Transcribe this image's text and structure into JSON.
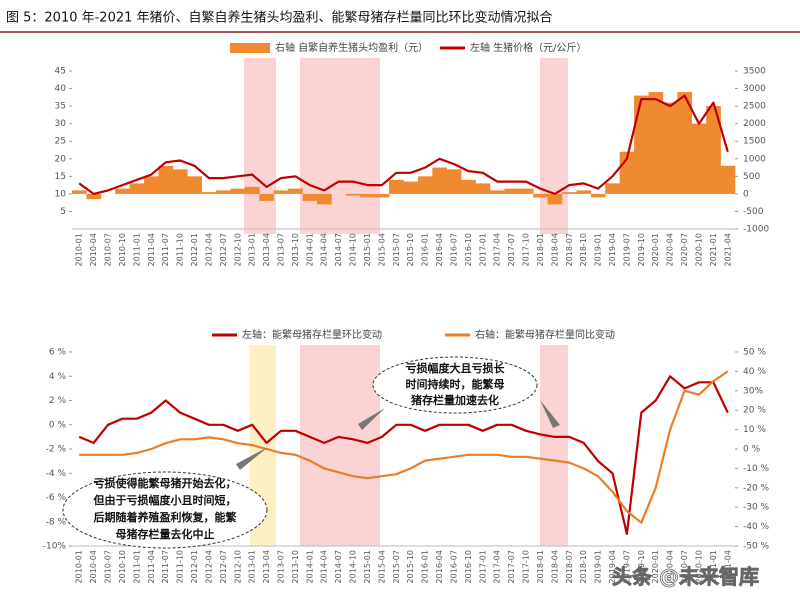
{
  "chart_data": [
    {
      "type": "combo",
      "title": "图 5：2010 年-2021 年猪价、自繁自养生猪头均盈利、能繁母猪存栏量同比环比变动情况拟合",
      "categories": [
        "2010-01",
        "2010-04",
        "2010-07",
        "2010-10",
        "2011-01",
        "2011-04",
        "2011-07",
        "2011-10",
        "2012-01",
        "2012-04",
        "2012-07",
        "2012-10",
        "2013-01",
        "2013-04",
        "2013-07",
        "2013-10",
        "2014-01",
        "2014-04",
        "2014-07",
        "2014-10",
        "2015-01",
        "2015-04",
        "2015-07",
        "2015-10",
        "2016-01",
        "2016-04",
        "2016-07",
        "2016-10",
        "2017-01",
        "2017-04",
        "2017-07",
        "2017-10",
        "2018-01",
        "2018-04",
        "2018-07",
        "2018-10",
        "2019-01",
        "2019-04",
        "2019-07",
        "2019-10",
        "2020-01",
        "2020-04",
        "2020-07",
        "2020-10",
        "2021-01",
        "2021-04"
      ],
      "series": [
        {
          "name": "右轴   自繁自养生猪头均盈利（元）",
          "kind": "bar",
          "axis": "y2",
          "color": "#f08a30",
          "values": [
            100,
            -150,
            0,
            150,
            300,
            500,
            800,
            700,
            500,
            50,
            100,
            150,
            200,
            -200,
            100,
            150,
            -200,
            -300,
            0,
            -50,
            -100,
            -100,
            400,
            350,
            500,
            750,
            700,
            400,
            300,
            100,
            150,
            150,
            -100,
            -300,
            50,
            100,
            -100,
            300,
            1200,
            2800,
            2900,
            2600,
            2900,
            2000,
            2500,
            800
          ]
        },
        {
          "name": "左轴   生猪价格（元/公斤）",
          "kind": "line",
          "axis": "y",
          "color": "#c00000",
          "values": [
            13,
            10,
            11,
            12.5,
            14,
            15.5,
            19,
            19.5,
            18,
            14.5,
            14.5,
            15,
            15.5,
            12,
            14.5,
            15,
            12.5,
            11,
            13.5,
            13.5,
            12.5,
            12.5,
            16,
            16,
            17.5,
            20,
            18.5,
            16.5,
            16,
            13.5,
            13.5,
            13.5,
            11.5,
            10,
            12.5,
            13,
            11.5,
            15,
            20,
            37,
            37,
            35,
            38,
            30,
            36,
            22
          ]
        }
      ],
      "ylim": [
        0,
        45
      ],
      "yticks": [
        5,
        10,
        15,
        20,
        25,
        30,
        35,
        40,
        45
      ],
      "y2lim": [
        -1000,
        3500
      ],
      "y2ticks": [
        -1000,
        -500,
        0,
        500,
        1000,
        1500,
        2000,
        2500,
        3000,
        3500
      ]
    },
    {
      "type": "combo",
      "categories": [
        "2010-01",
        "2010-04",
        "2010-07",
        "2010-10",
        "2011-01",
        "2011-04",
        "2011-07",
        "2011-10",
        "2012-01",
        "2012-04",
        "2012-07",
        "2012-10",
        "2013-01",
        "2013-04",
        "2013-07",
        "2013-10",
        "2014-01",
        "2014-04",
        "2014-07",
        "2014-10",
        "2015-01",
        "2015-04",
        "2015-07",
        "2015-10",
        "2016-01",
        "2016-04",
        "2016-07",
        "2016-10",
        "2017-01",
        "2017-04",
        "2017-07",
        "2017-10",
        "2018-01",
        "2018-04",
        "2018-07",
        "2018-10",
        "2019-01",
        "2019-04",
        "2019-07",
        "2019-10",
        "2020-01",
        "2020-04",
        "2020-07",
        "2020-10",
        "2021-01",
        "2021-04"
      ],
      "series": [
        {
          "name": "左轴：能繁母猪存栏量环比变动",
          "kind": "line",
          "axis": "y",
          "color": "#c00000",
          "values": [
            -1,
            -1.5,
            0,
            0.5,
            0.5,
            1,
            2,
            1,
            0.5,
            0,
            0,
            -0.5,
            0,
            -1.5,
            -0.5,
            -0.5,
            -1,
            -1.5,
            -1,
            -1.2,
            -1.5,
            -1,
            0,
            0,
            -0.5,
            0,
            0,
            0,
            -0.5,
            0,
            0,
            -0.5,
            -0.8,
            -1,
            -1,
            -1.5,
            -3,
            -4,
            -9,
            1,
            2,
            4,
            3,
            3.5,
            3.5,
            1
          ]
        },
        {
          "name": "右轴：能繁母猪存栏量同比变动",
          "kind": "line",
          "axis": "y2",
          "color": "#e87e2a",
          "values": [
            -3,
            -3,
            -3,
            -3,
            -2,
            0,
            3,
            5,
            5,
            6,
            5,
            3,
            2,
            0,
            -2,
            -3,
            -6,
            -10,
            -12,
            -14,
            -15,
            -14,
            -13,
            -10,
            -6,
            -5,
            -4,
            -3,
            -3,
            -3,
            -4,
            -4,
            -5,
            -6,
            -7,
            -10,
            -14,
            -22,
            -32,
            -38,
            -20,
            10,
            30,
            28,
            35,
            40
          ]
        }
      ],
      "ylim": [
        -10,
        6
      ],
      "yticks": [
        {
          "value": -10,
          "label": "-10%"
        },
        {
          "value": -8,
          "label": "-8 %"
        },
        {
          "value": -6,
          "label": "-6 %"
        },
        {
          "value": -4,
          "label": "-4 %"
        },
        {
          "value": -2,
          "label": "-2 %"
        },
        {
          "value": 0,
          "label": "0 %"
        },
        {
          "value": 2,
          "label": "2 %"
        },
        {
          "value": 4,
          "label": "4 %"
        },
        {
          "value": 6,
          "label": "6 %"
        }
      ],
      "y2lim": [
        -50,
        50
      ],
      "y2ticks": [
        {
          "value": -50,
          "label": "-50 %"
        },
        {
          "value": -40,
          "label": "-40 %"
        },
        {
          "value": -30,
          "label": "-30 %"
        },
        {
          "value": -20,
          "label": "-20 %"
        },
        {
          "value": -10,
          "label": "-10 %"
        },
        {
          "value": 0,
          "label": "0 %"
        },
        {
          "value": 10,
          "label": "10 %"
        },
        {
          "value": 20,
          "label": "20 %"
        },
        {
          "value": 30,
          "label": "30%"
        },
        {
          "value": 40,
          "label": "40 %"
        },
        {
          "value": 50,
          "label": "50 %"
        }
      ],
      "annotations": [
        {
          "lines": [
            "亏损幅度大且亏损长",
            "时间持续时，能繁母",
            "猪存栏量加速去化"
          ]
        },
        {
          "lines": [
            "亏损使得能繁母猪开始去化，",
            "但由于亏损幅度小且时间短，",
            "后期随着养殖盈利恢复，能繁",
            "母猪存栏量去化中止"
          ]
        }
      ],
      "watermark": "头条 @未来智库"
    }
  ]
}
